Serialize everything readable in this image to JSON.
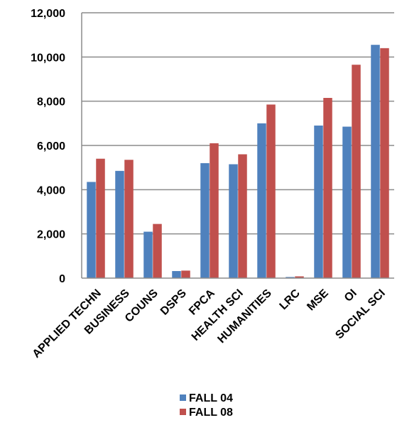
{
  "chart_data": {
    "type": "bar",
    "categories": [
      "APPLIED TECHN",
      "BUSINESS",
      "COUNS",
      "DSPS",
      "FPCA",
      "HEALTH SCI",
      "HUMANITIES",
      "LRC",
      "MSE",
      "OI",
      "SOCIAL SCI"
    ],
    "series": [
      {
        "name": "FALL 04",
        "color": "#4F81BD",
        "values": [
          4350,
          4850,
          2100,
          320,
          5200,
          5150,
          7000,
          50,
          6900,
          6850,
          10550
        ]
      },
      {
        "name": "FALL 08",
        "color": "#C0504D",
        "values": [
          5400,
          5350,
          2450,
          340,
          6100,
          5600,
          7850,
          80,
          8150,
          9650,
          10400
        ]
      }
    ],
    "ylim": [
      0,
      12000
    ],
    "yticks": [
      "0",
      "2,000",
      "4,000",
      "6,000",
      "8,000",
      "10,000",
      "12,000"
    ],
    "grid": true,
    "legend_position": "bottom"
  }
}
